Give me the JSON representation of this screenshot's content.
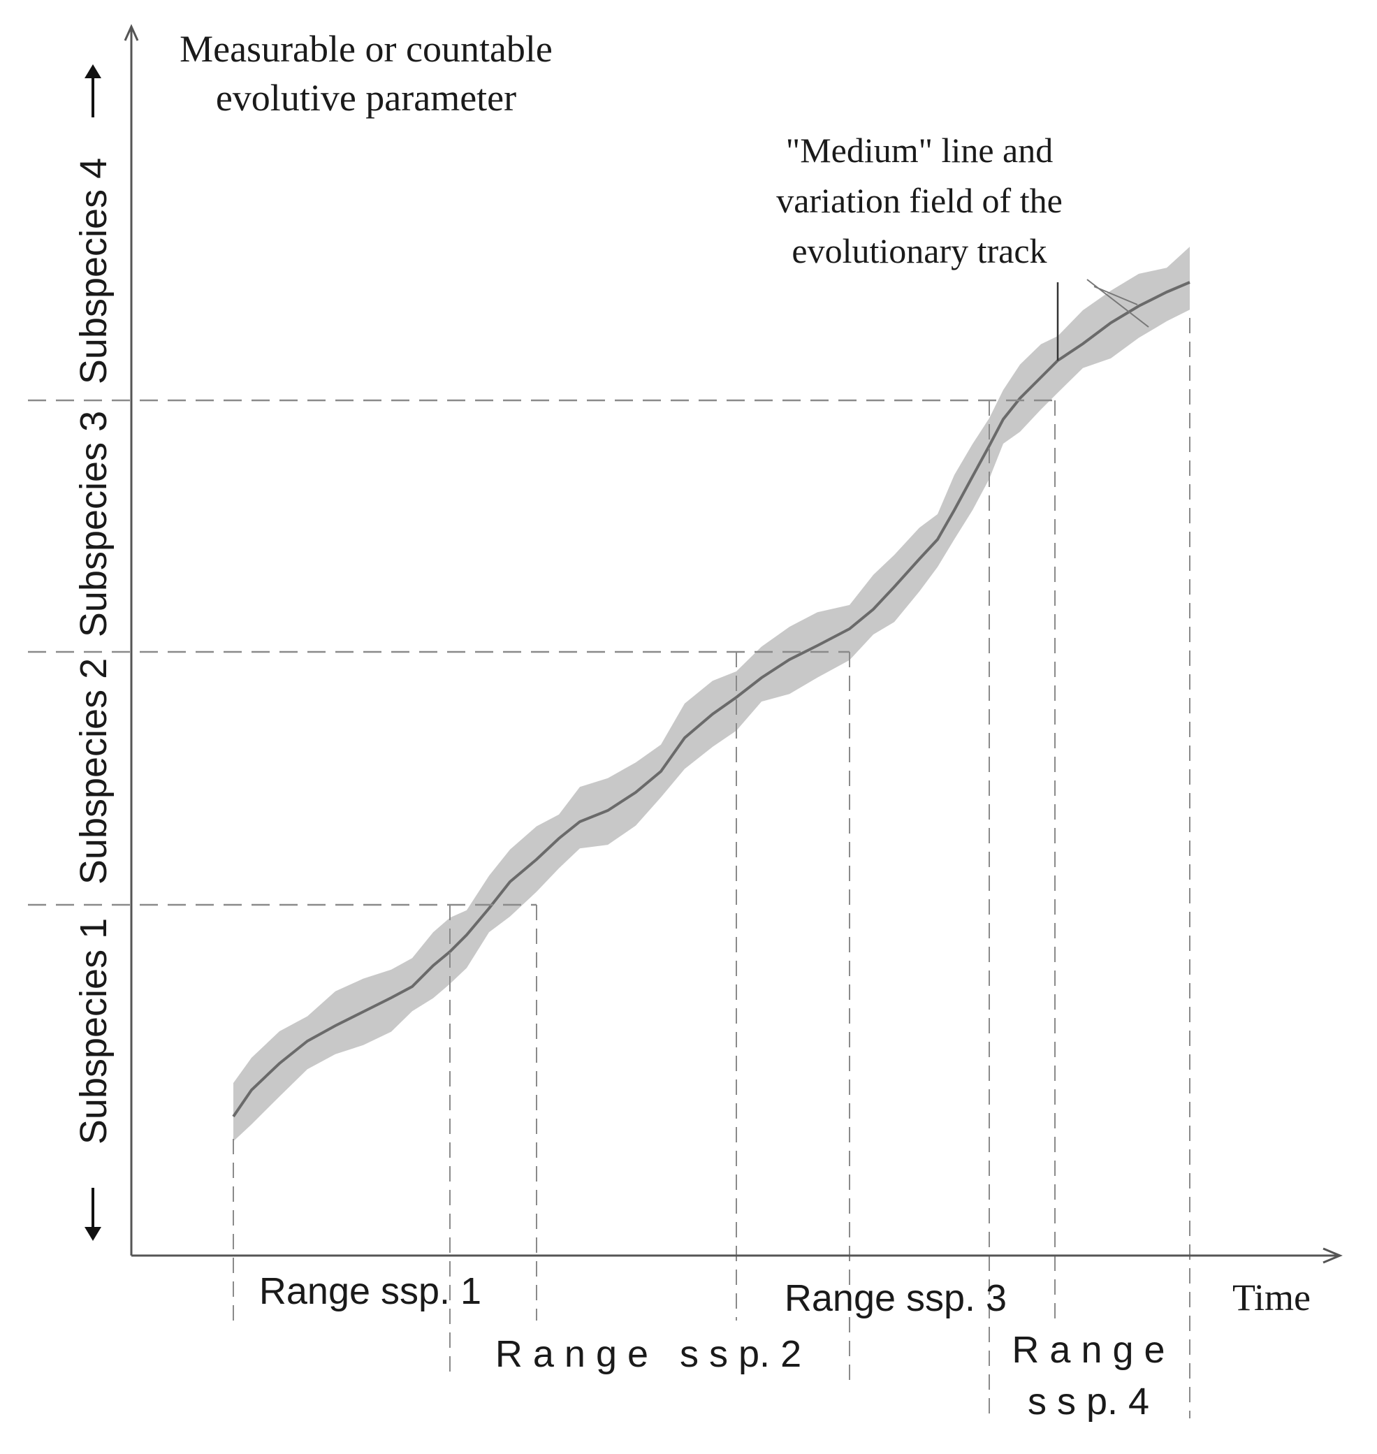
{
  "y_axis_label": [
    "Measurable or countable",
    "evolutive parameter"
  ],
  "x_axis_label": "Time",
  "subspecies_labels": [
    "Subspecies 1",
    "Subspecies 2",
    "Subspecies 3",
    "Subspecies 4"
  ],
  "annotation": [
    "\"Medium\" line and",
    "variation field of the",
    "evolutionary track"
  ],
  "ranges": [
    {
      "text": "Range ssp. 1"
    },
    {
      "text": "R a n g e   s s p. 2"
    },
    {
      "text": "Range ssp. 3"
    },
    {
      "text_lines": [
        "R a n g e",
        "s s p. 4"
      ]
    }
  ],
  "colors": {
    "band": "#c8c8c8",
    "median_line": "#6a6a6a",
    "axes": "#555555",
    "dashed_guides": "#8a8a8a"
  }
}
